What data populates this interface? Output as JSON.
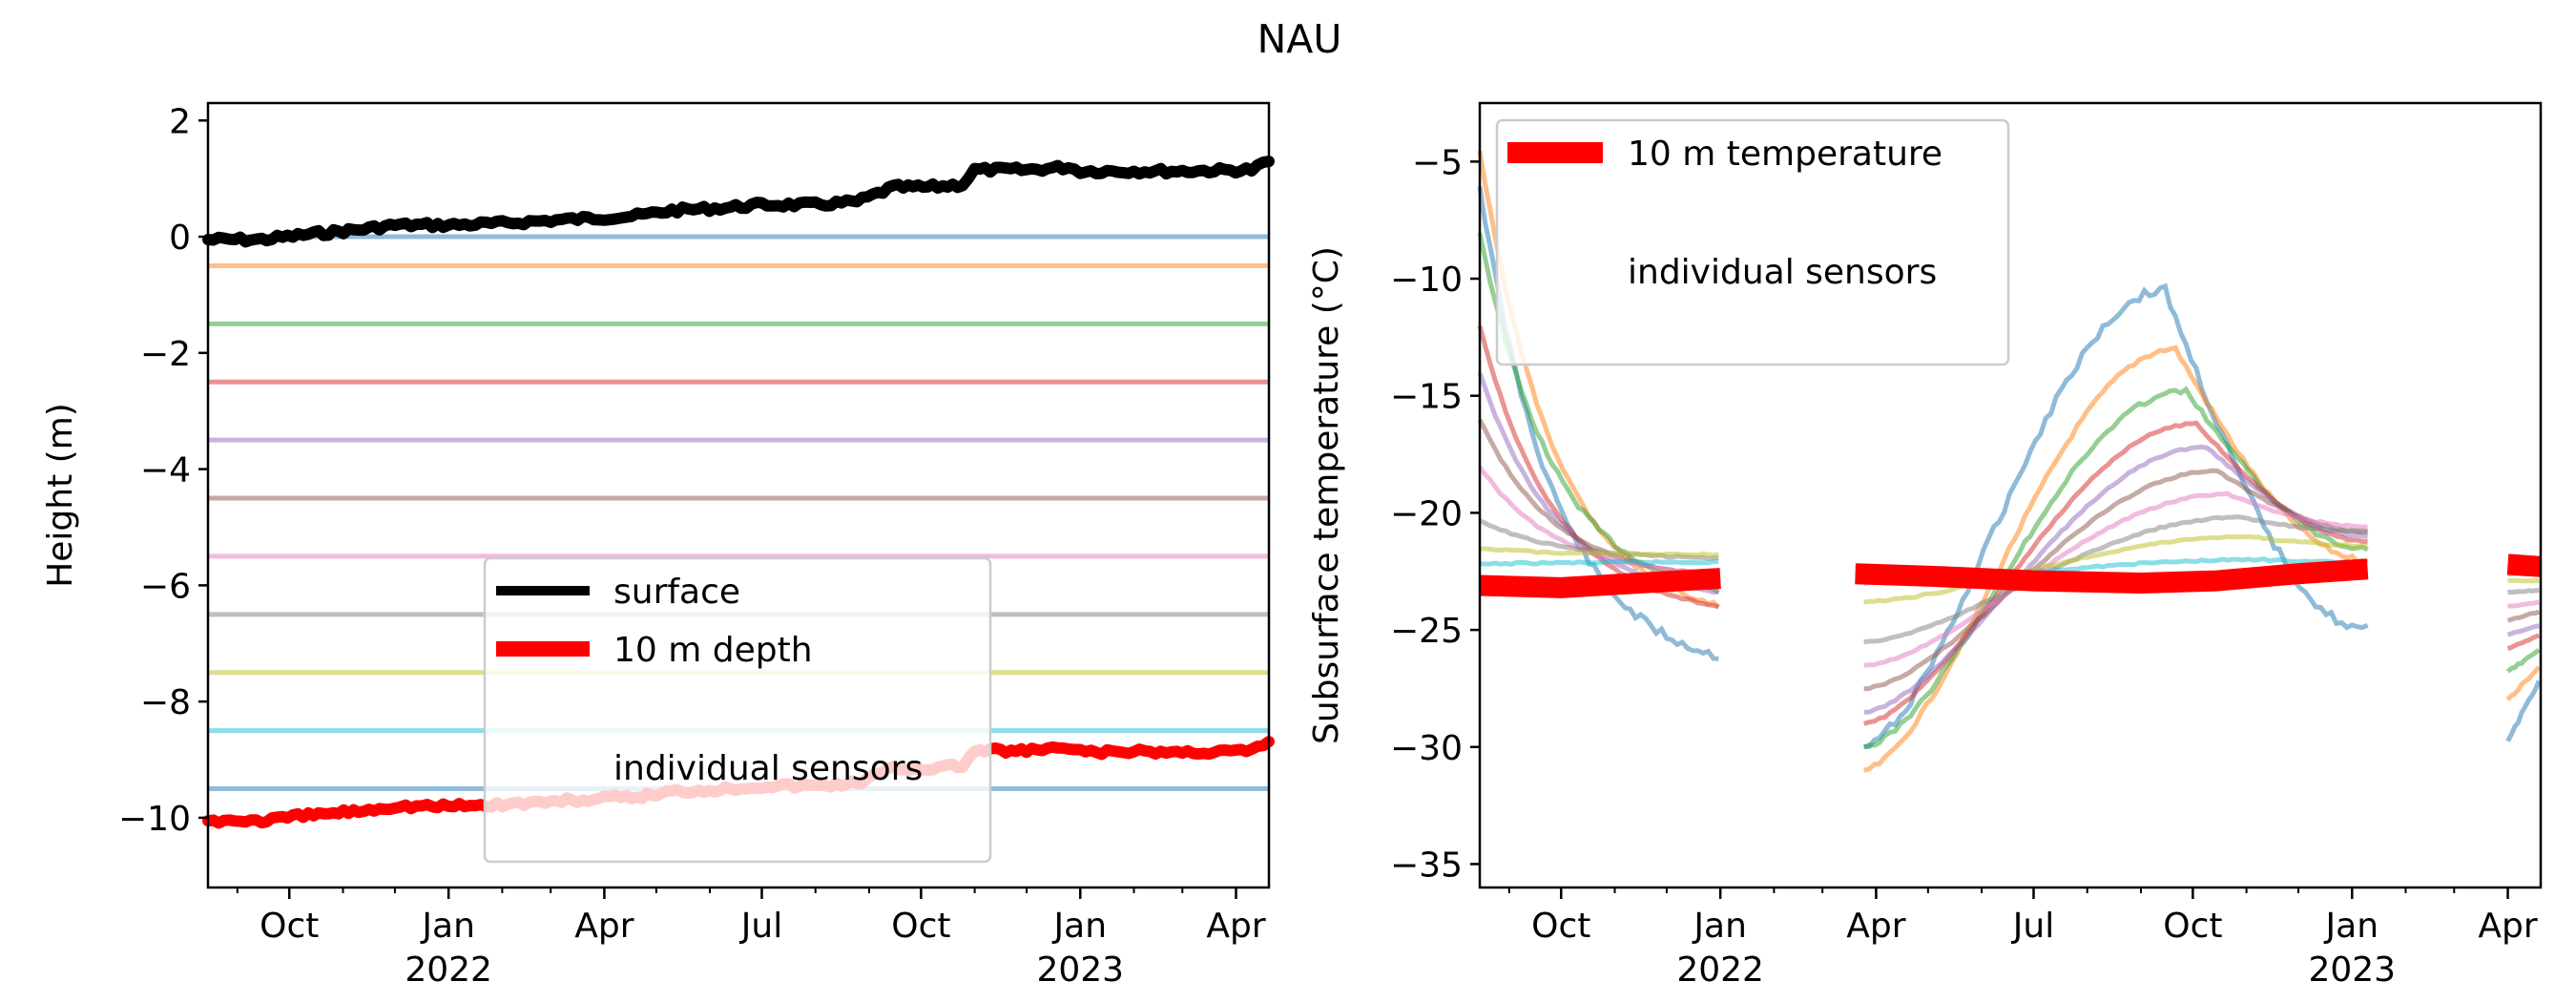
{
  "figure": {
    "title": "NAU"
  },
  "chart_data": [
    {
      "type": "line",
      "ylabel": "Height (m)",
      "xlim": [
        "2021-08-15",
        "2023-04-20"
      ],
      "ylim": [
        -11.2,
        2.3
      ],
      "yticks": [
        2,
        0,
        -2,
        -4,
        -6,
        -8,
        -10
      ],
      "ytick_labels": [
        "2",
        "0",
        "−2",
        "−4",
        "−6",
        "−8",
        "−10"
      ],
      "xticks_major": [
        {
          "date": "2021-10-01",
          "label": "Oct"
        },
        {
          "date": "2022-01-01",
          "label": "Jan",
          "year": "2022"
        },
        {
          "date": "2022-04-01",
          "label": "Apr"
        },
        {
          "date": "2022-07-01",
          "label": "Jul"
        },
        {
          "date": "2022-10-01",
          "label": "Oct"
        },
        {
          "date": "2023-01-01",
          "label": "Jan",
          "year": "2023"
        },
        {
          "date": "2023-04-01",
          "label": "Apr"
        }
      ],
      "sensor_depths": [
        0,
        -0.5,
        -1.5,
        -2.5,
        -3.5,
        -4.5,
        -5.5,
        -6.5,
        -7.5,
        -8.5,
        -9.5
      ],
      "legend": {
        "location": "lower center",
        "entries": [
          "surface",
          "10 m depth",
          "individual sensors"
        ]
      },
      "series": [
        {
          "name": "surface",
          "color": "#000000",
          "points": [
            [
              "2021-08-15",
              -0.05
            ],
            [
              "2021-09-15",
              -0.05
            ],
            [
              "2021-10-15",
              0.05
            ],
            [
              "2021-11-10",
              0.12
            ],
            [
              "2021-12-01",
              0.2
            ],
            [
              "2022-01-01",
              0.2
            ],
            [
              "2022-02-01",
              0.23
            ],
            [
              "2022-03-01",
              0.28
            ],
            [
              "2022-04-01",
              0.33
            ],
            [
              "2022-04-20",
              0.36
            ],
            [
              "2022-05-10",
              0.45
            ],
            [
              "2022-06-10",
              0.5
            ],
            [
              "2022-07-01",
              0.55
            ],
            [
              "2022-08-01",
              0.55
            ],
            [
              "2022-08-25",
              0.6
            ],
            [
              "2022-09-15",
              0.85
            ],
            [
              "2022-10-05",
              0.85
            ],
            [
              "2022-10-25",
              0.9
            ],
            [
              "2022-11-01",
              1.15
            ],
            [
              "2022-12-01",
              1.15
            ],
            [
              "2022-12-25",
              1.2
            ],
            [
              "2023-01-01",
              1.13
            ],
            [
              "2023-02-01",
              1.13
            ],
            [
              "2023-03-01",
              1.13
            ],
            [
              "2023-04-10",
              1.15
            ],
            [
              "2023-04-20",
              1.3
            ]
          ]
        },
        {
          "name": "10 m depth",
          "color": "#ff0000",
          "points": [
            [
              "2021-08-15",
              -10.05
            ],
            [
              "2021-09-15",
              -10.05
            ],
            [
              "2021-10-15",
              -9.95
            ],
            [
              "2021-11-10",
              -9.88
            ],
            [
              "2021-12-01",
              -9.8
            ],
            [
              "2022-01-01",
              -9.8
            ],
            [
              "2022-02-01",
              -9.77
            ],
            [
              "2022-03-01",
              -9.72
            ],
            [
              "2022-04-01",
              -9.67
            ],
            [
              "2022-04-20",
              -9.64
            ],
            [
              "2022-05-10",
              -9.55
            ],
            [
              "2022-06-10",
              -9.5
            ],
            [
              "2022-07-01",
              -9.45
            ],
            [
              "2022-08-01",
              -9.45
            ],
            [
              "2022-08-25",
              -9.4
            ],
            [
              "2022-09-15",
              -9.15
            ],
            [
              "2022-10-05",
              -9.15
            ],
            [
              "2022-10-25",
              -9.1
            ],
            [
              "2022-11-01",
              -8.85
            ],
            [
              "2022-12-01",
              -8.85
            ],
            [
              "2022-12-25",
              -8.8
            ],
            [
              "2023-01-01",
              -8.87
            ],
            [
              "2023-02-01",
              -8.87
            ],
            [
              "2023-03-01",
              -8.87
            ],
            [
              "2023-04-10",
              -8.85
            ],
            [
              "2023-04-20",
              -8.7
            ]
          ]
        }
      ]
    },
    {
      "type": "line",
      "ylabel": "Subsurface temperature (°C)",
      "xlim": [
        "2021-08-15",
        "2023-04-20"
      ],
      "ylim": [
        -36,
        -2.5
      ],
      "yticks": [
        -5,
        -10,
        -15,
        -20,
        -25,
        -30,
        -35
      ],
      "ytick_labels": [
        "−5",
        "−10",
        "−15",
        "−20",
        "−25",
        "−30",
        "−35"
      ],
      "xticks_major": [
        {
          "date": "2021-10-01",
          "label": "Oct"
        },
        {
          "date": "2022-01-01",
          "label": "Jan",
          "year": "2022"
        },
        {
          "date": "2022-04-01",
          "label": "Apr"
        },
        {
          "date": "2022-07-01",
          "label": "Jul"
        },
        {
          "date": "2022-10-01",
          "label": "Oct"
        },
        {
          "date": "2023-01-01",
          "label": "Jan",
          "year": "2023"
        },
        {
          "date": "2023-04-01",
          "label": "Apr"
        }
      ],
      "legend": {
        "location": "upper left",
        "entries": [
          "10 m temperature",
          "individual sensors"
        ]
      },
      "series": [
        {
          "name": "10 m temperature",
          "color": "#ff0000",
          "segments": [
            [
              [
                "2021-08-15",
                -23.1
              ],
              [
                "2021-10-01",
                -23.2
              ],
              [
                "2021-11-15",
                -23.0
              ],
              [
                "2022-01-01",
                -22.8
              ]
            ],
            [
              [
                "2022-03-20",
                -22.6
              ],
              [
                "2022-05-01",
                -22.7
              ],
              [
                "2022-07-01",
                -22.9
              ],
              [
                "2022-09-01",
                -23.0
              ],
              [
                "2022-10-15",
                -22.9
              ],
              [
                "2022-12-01",
                -22.6
              ],
              [
                "2023-01-10",
                -22.4
              ]
            ],
            [
              [
                "2023-04-01",
                -22.2
              ],
              [
                "2023-04-20",
                -22.3
              ]
            ]
          ]
        }
      ],
      "sensors": [
        {
          "winter_start": -6.0,
          "winter_end": -27.0,
          "spring_start": -30.0,
          "summer_peak": -10.5,
          "fall_end": -25.0,
          "last_start": -29.8,
          "last_end": -27.0
        },
        {
          "winter_start": -4.5,
          "winter_end": -24.8,
          "spring_start": -31.0,
          "summer_peak": -13.0,
          "fall_end": -22.0,
          "last_start": -28.0,
          "last_end": -26.5
        },
        {
          "winter_start": -8.0,
          "winter_end": -24.0,
          "spring_start": -30.0,
          "summer_peak": -14.8,
          "fall_end": -21.5,
          "last_start": -26.8,
          "last_end": -25.8
        },
        {
          "winter_start": -12.0,
          "winter_end": -24.5,
          "spring_start": -29.0,
          "summer_peak": -16.2,
          "fall_end": -21.2,
          "last_start": -25.8,
          "last_end": -25.2
        },
        {
          "winter_start": -14.0,
          "winter_end": -23.8,
          "spring_start": -28.5,
          "summer_peak": -17.2,
          "fall_end": -21.0,
          "last_start": -25.2,
          "last_end": -24.8
        },
        {
          "winter_start": -16.0,
          "winter_end": -23.0,
          "spring_start": -27.5,
          "summer_peak": -18.2,
          "fall_end": -20.8,
          "last_start": -24.6,
          "last_end": -24.2
        },
        {
          "winter_start": -18.0,
          "winter_end": -22.8,
          "spring_start": -26.5,
          "summer_peak": -19.2,
          "fall_end": -20.6,
          "last_start": -24.0,
          "last_end": -23.8
        },
        {
          "winter_start": -20.3,
          "winter_end": -22.0,
          "spring_start": -25.5,
          "summer_peak": -20.2,
          "fall_end": -20.8,
          "last_start": -23.4,
          "last_end": -23.3
        },
        {
          "winter_start": -21.5,
          "winter_end": -21.8,
          "spring_start": -23.8,
          "summer_peak": -21.0,
          "fall_end": -21.4,
          "last_start": -22.9,
          "last_end": -22.9
        },
        {
          "winter_start": -22.2,
          "winter_end": -22.1,
          "spring_start": -23.0,
          "summer_peak": -22.0,
          "fall_end": -22.1,
          "last_start": -22.6,
          "last_end": -22.6
        }
      ]
    }
  ]
}
